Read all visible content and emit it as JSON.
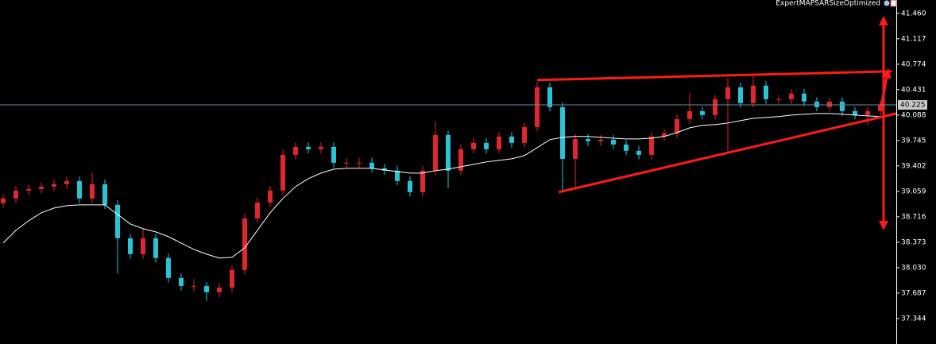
{
  "chart_data": {
    "type": "candlestick",
    "title": "ExpertMAPSARSizeOptimized",
    "ylim": [
      37.0,
      41.64
    ],
    "yticks": [
      {
        "value": 41.46,
        "label": "41.460"
      },
      41.117,
      40.774,
      40.431,
      40.088,
      39.745,
      39.402,
      39.059,
      38.716,
      38.373,
      {
        "value": 38.03,
        "label": "38.030"
      },
      37.687,
      37.344
    ],
    "up_color": "#e0262e",
    "down_color": "#29c3d6",
    "open": [
      38.9,
      38.963,
      39.07,
      39.091,
      39.123,
      39.155,
      39.198,
      38.963,
      39.155,
      38.877,
      38.427,
      38.212,
      38.427,
      38.159,
      37.891,
      37.783,
      37.783,
      37.698,
      37.762,
      37.998,
      38.694,
      38.909,
      39.07,
      39.552,
      39.659,
      39.627,
      39.659,
      39.445,
      39.445,
      39.445,
      39.37,
      39.338,
      39.198,
      39.048,
      39.338,
      39.82,
      39.338,
      39.627,
      39.713,
      39.627,
      39.799,
      39.713,
      39.927,
      40.463,
      40.195,
      39.498,
      39.766,
      39.734,
      39.756,
      39.691,
      39.606,
      39.552,
      39.799,
      39.841,
      40.034,
      40.142,
      40.088,
      40.302,
      40.463,
      40.249,
      40.485,
      40.302,
      40.302,
      40.377,
      40.27,
      40.195,
      40.27,
      40.142,
      40.088,
      40.142
    ],
    "high": [
      39.02,
      39.13,
      39.15,
      39.18,
      39.22,
      39.26,
      39.26,
      39.31,
      39.22,
      38.94,
      38.49,
      38.55,
      38.49,
      38.22,
      37.95,
      37.88,
      37.84,
      37.82,
      38.06,
      38.76,
      38.97,
      39.13,
      39.62,
      39.72,
      39.72,
      39.72,
      39.72,
      39.51,
      39.51,
      39.51,
      39.43,
      39.4,
      39.26,
      39.4,
      40.0,
      39.88,
      39.69,
      39.78,
      39.78,
      39.86,
      39.86,
      39.99,
      40.53,
      40.53,
      40.26,
      39.83,
      39.83,
      39.82,
      39.82,
      39.75,
      39.67,
      39.86,
      39.9,
      40.1,
      40.39,
      40.2,
      40.36,
      40.59,
      40.53,
      40.62,
      40.55,
      40.36,
      40.44,
      40.44,
      40.33,
      40.33,
      40.33,
      40.2,
      40.2,
      40.28
    ],
    "low": [
      38.84,
      38.9,
      39.01,
      39.03,
      39.06,
      39.09,
      38.9,
      38.9,
      38.82,
      37.95,
      38.15,
      38.15,
      38.1,
      37.83,
      37.72,
      37.7,
      37.58,
      37.63,
      37.7,
      37.94,
      38.63,
      38.85,
      39.01,
      39.49,
      39.57,
      39.57,
      39.38,
      39.38,
      39.38,
      39.31,
      39.28,
      39.14,
      38.99,
      38.99,
      39.28,
      39.1,
      39.28,
      39.57,
      39.57,
      39.57,
      39.65,
      39.65,
      39.87,
      40.14,
      39.06,
      39.1,
      39.67,
      39.67,
      39.63,
      39.55,
      39.49,
      39.49,
      39.74,
      39.78,
      39.97,
      40.03,
      40.03,
      39.6,
      40.19,
      40.19,
      40.24,
      40.24,
      40.24,
      40.21,
      40.14,
      40.14,
      40.08,
      40.03,
      39.95,
      40.08
    ],
    "close": [
      38.963,
      39.07,
      39.091,
      39.123,
      39.155,
      39.198,
      38.963,
      39.155,
      38.877,
      38.427,
      38.212,
      38.427,
      38.159,
      37.891,
      37.783,
      37.783,
      37.698,
      37.762,
      37.998,
      38.694,
      38.909,
      39.07,
      39.552,
      39.659,
      39.627,
      39.659,
      39.445,
      39.445,
      39.445,
      39.37,
      39.338,
      39.198,
      39.048,
      39.338,
      39.82,
      39.338,
      39.627,
      39.713,
      39.627,
      39.799,
      39.713,
      39.927,
      40.463,
      40.195,
      39.498,
      39.766,
      39.734,
      39.756,
      39.691,
      39.606,
      39.552,
      39.799,
      39.841,
      40.034,
      40.142,
      40.088,
      40.302,
      40.463,
      40.249,
      40.485,
      40.302,
      40.302,
      40.377,
      40.27,
      40.195,
      40.27,
      40.142,
      40.088,
      40.142,
      40.225
    ],
    "ma": {
      "color": "#ffffff",
      "values": [
        38.362,
        38.534,
        38.662,
        38.77,
        38.834,
        38.866,
        38.877,
        38.877,
        38.877,
        38.748,
        38.619,
        38.555,
        38.512,
        38.448,
        38.362,
        38.276,
        38.212,
        38.159,
        38.169,
        38.298,
        38.534,
        38.77,
        38.963,
        39.123,
        39.23,
        39.305,
        39.359,
        39.37,
        39.37,
        39.37,
        39.348,
        39.327,
        39.305,
        39.305,
        39.338,
        39.359,
        39.391,
        39.423,
        39.456,
        39.477,
        39.498,
        39.541,
        39.648,
        39.756,
        39.788,
        39.799,
        39.799,
        39.788,
        39.777,
        39.766,
        39.766,
        39.777,
        39.799,
        39.852,
        39.916,
        39.949,
        39.959,
        39.981,
        40.013,
        40.045,
        40.056,
        40.067,
        40.088,
        40.099,
        40.109,
        40.109,
        40.099,
        40.088,
        40.077,
        40.067
      ]
    },
    "last_price": 40.225,
    "last_price_color": "#6a8aa8",
    "trendlines": [
      {
        "color": "#ff1a1a",
        "x": [
          42,
          69.9
        ],
        "y": [
          40.56,
          40.678
        ]
      },
      {
        "color": "#ff1a1a",
        "x": [
          43.7,
          70.25
        ],
        "y": [
          39.048,
          40.109
        ]
      }
    ]
  }
}
